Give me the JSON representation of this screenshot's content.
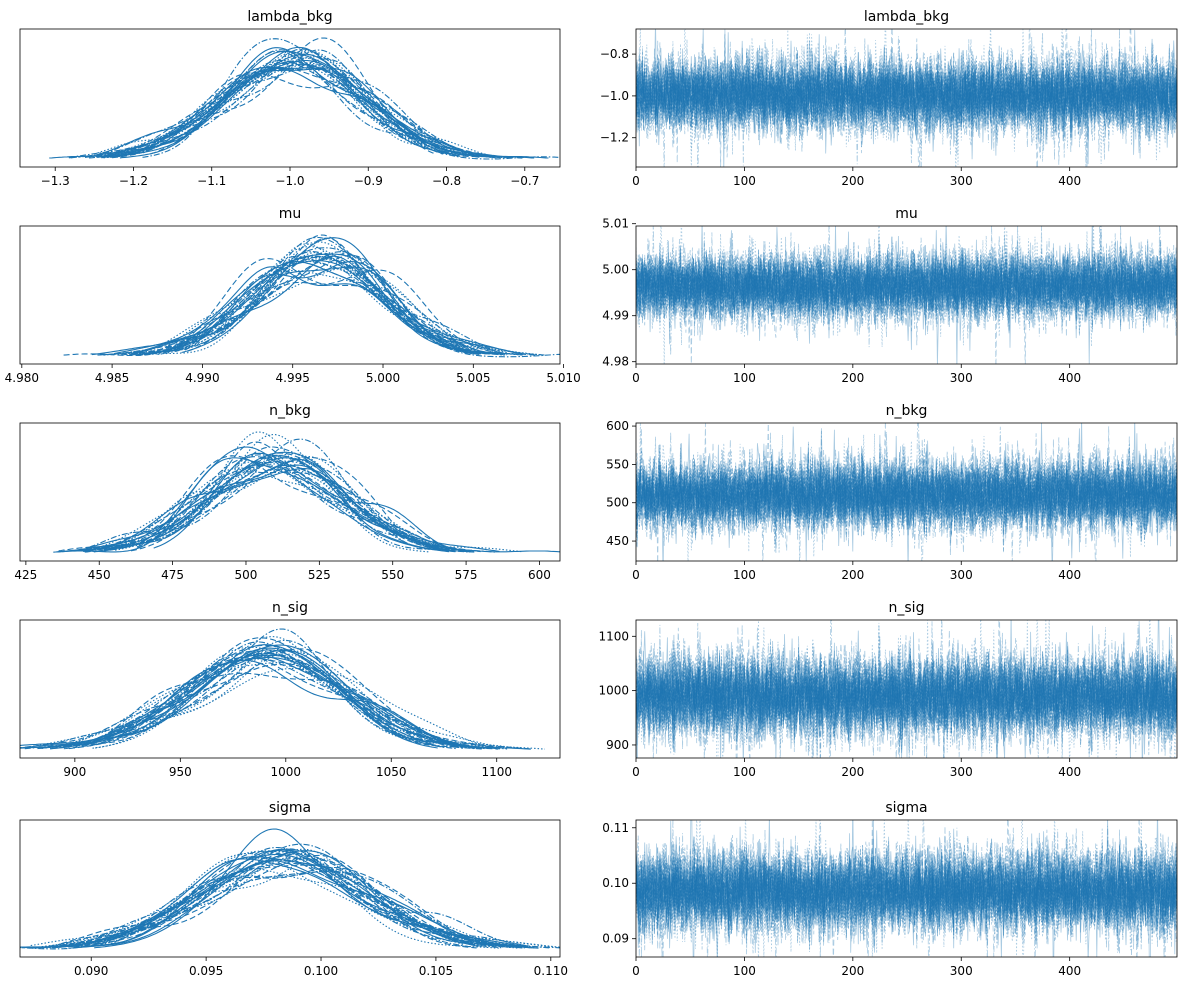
{
  "chart_data": [
    {
      "type": "density",
      "panel": "kde",
      "title": "lambda_bkg",
      "chains": 32,
      "mean": -0.995,
      "sd": 0.085,
      "xlim": [
        -1.345,
        -0.655
      ],
      "x_ticks": [
        {
          "v": -1.3,
          "label": "−1.3"
        },
        {
          "v": -1.2,
          "label": "−1.2"
        },
        {
          "v": -1.1,
          "label": "−1.1"
        },
        {
          "v": -1.0,
          "label": "−1.0"
        },
        {
          "v": -0.9,
          "label": "−0.9"
        },
        {
          "v": -0.8,
          "label": "−0.8"
        },
        {
          "v": -0.7,
          "label": "−0.7"
        }
      ],
      "y_ticks": [],
      "color": "#1f77b4"
    },
    {
      "type": "line",
      "panel": "trace",
      "title": "lambda_bkg",
      "chains": 32,
      "draws": 500,
      "mean": -0.995,
      "sd": 0.085,
      "xlim": [
        0,
        499
      ],
      "ylim": [
        -1.34,
        -0.68
      ],
      "x_ticks": [
        {
          "v": 0,
          "label": "0"
        },
        {
          "v": 100,
          "label": "100"
        },
        {
          "v": 200,
          "label": "200"
        },
        {
          "v": 300,
          "label": "300"
        },
        {
          "v": 400,
          "label": "400"
        }
      ],
      "y_ticks": [
        {
          "v": -1.2,
          "label": "−1.2"
        },
        {
          "v": -1.0,
          "label": "−1.0"
        },
        {
          "v": -0.8,
          "label": "−0.8"
        }
      ],
      "color": "#1f77b4"
    },
    {
      "type": "density",
      "panel": "kde",
      "title": "mu",
      "chains": 32,
      "mean": 4.9965,
      "sd": 0.0035,
      "xlim": [
        4.9799,
        5.0098
      ],
      "x_ticks": [
        {
          "v": 4.98,
          "label": "4.980"
        },
        {
          "v": 4.985,
          "label": "4.985"
        },
        {
          "v": 4.99,
          "label": "4.990"
        },
        {
          "v": 4.995,
          "label": "4.995"
        },
        {
          "v": 5.0,
          "label": "5.000"
        },
        {
          "v": 5.005,
          "label": "5.005"
        },
        {
          "v": 5.01,
          "label": "5.010"
        }
      ],
      "y_ticks": [],
      "color": "#1f77b4"
    },
    {
      "type": "line",
      "panel": "trace",
      "title": "mu",
      "chains": 32,
      "draws": 500,
      "mean": 4.9965,
      "sd": 0.0035,
      "xlim": [
        0,
        499
      ],
      "ylim": [
        4.9795,
        5.0095
      ],
      "x_ticks": [
        {
          "v": 0,
          "label": "0"
        },
        {
          "v": 100,
          "label": "100"
        },
        {
          "v": 200,
          "label": "200"
        },
        {
          "v": 300,
          "label": "300"
        },
        {
          "v": 400,
          "label": "400"
        }
      ],
      "y_ticks": [
        {
          "v": 4.98,
          "label": "4.98"
        },
        {
          "v": 4.99,
          "label": "4.99"
        },
        {
          "v": 5.0,
          "label": "5.00"
        },
        {
          "v": 5.01,
          "label": "5.01"
        }
      ],
      "color": "#1f77b4"
    },
    {
      "type": "density",
      "panel": "kde",
      "title": "n_bkg",
      "chains": 32,
      "mean": 510,
      "sd": 22,
      "xlim": [
        423,
        607
      ],
      "x_ticks": [
        {
          "v": 425,
          "label": "425"
        },
        {
          "v": 450,
          "label": "450"
        },
        {
          "v": 475,
          "label": "475"
        },
        {
          "v": 500,
          "label": "500"
        },
        {
          "v": 525,
          "label": "525"
        },
        {
          "v": 550,
          "label": "550"
        },
        {
          "v": 575,
          "label": "575"
        },
        {
          "v": 600,
          "label": "600"
        }
      ],
      "y_ticks": [],
      "color": "#1f77b4"
    },
    {
      "type": "line",
      "panel": "trace",
      "title": "n_bkg",
      "chains": 32,
      "draws": 500,
      "mean": 510,
      "sd": 22,
      "xlim": [
        0,
        499
      ],
      "ylim": [
        424,
        604
      ],
      "x_ticks": [
        {
          "v": 0,
          "label": "0"
        },
        {
          "v": 100,
          "label": "100"
        },
        {
          "v": 200,
          "label": "200"
        },
        {
          "v": 300,
          "label": "300"
        },
        {
          "v": 400,
          "label": "400"
        }
      ],
      "y_ticks": [
        {
          "v": 450,
          "label": "450"
        },
        {
          "v": 500,
          "label": "500"
        },
        {
          "v": 550,
          "label": "550"
        },
        {
          "v": 600,
          "label": "600"
        }
      ],
      "color": "#1f77b4"
    },
    {
      "type": "density",
      "panel": "kde",
      "title": "n_sig",
      "chains": 32,
      "mean": 990,
      "sd": 36,
      "xlim": [
        874,
        1130
      ],
      "x_ticks": [
        {
          "v": 900,
          "label": "900"
        },
        {
          "v": 950,
          "label": "950"
        },
        {
          "v": 1000,
          "label": "1000"
        },
        {
          "v": 1050,
          "label": "1050"
        },
        {
          "v": 1100,
          "label": "1100"
        }
      ],
      "y_ticks": [],
      "color": "#1f77b4"
    },
    {
      "type": "line",
      "panel": "trace",
      "title": "n_sig",
      "chains": 32,
      "draws": 500,
      "mean": 990,
      "sd": 36,
      "xlim": [
        0,
        499
      ],
      "ylim": [
        876,
        1130
      ],
      "x_ticks": [
        {
          "v": 0,
          "label": "0"
        },
        {
          "v": 100,
          "label": "100"
        },
        {
          "v": 200,
          "label": "200"
        },
        {
          "v": 300,
          "label": "300"
        },
        {
          "v": 400,
          "label": "400"
        }
      ],
      "y_ticks": [
        {
          "v": 900,
          "label": "900"
        },
        {
          "v": 1000,
          "label": "1000"
        },
        {
          "v": 1100,
          "label": "1100"
        }
      ],
      "color": "#1f77b4"
    },
    {
      "type": "density",
      "panel": "kde",
      "title": "sigma",
      "chains": 32,
      "mean": 0.0985,
      "sd": 0.0035,
      "xlim": [
        0.0869,
        0.1104
      ],
      "x_ticks": [
        {
          "v": 0.09,
          "label": "0.090"
        },
        {
          "v": 0.095,
          "label": "0.095"
        },
        {
          "v": 0.1,
          "label": "0.100"
        },
        {
          "v": 0.105,
          "label": "0.105"
        },
        {
          "v": 0.11,
          "label": "0.110"
        }
      ],
      "y_ticks": [],
      "color": "#1f77b4"
    },
    {
      "type": "line",
      "panel": "trace",
      "title": "sigma",
      "chains": 32,
      "draws": 500,
      "mean": 0.0985,
      "sd": 0.0035,
      "xlim": [
        0,
        499
      ],
      "ylim": [
        0.0867,
        0.1114
      ],
      "x_ticks": [
        {
          "v": 0,
          "label": "0"
        },
        {
          "v": 100,
          "label": "100"
        },
        {
          "v": 200,
          "label": "200"
        },
        {
          "v": 300,
          "label": "300"
        },
        {
          "v": 400,
          "label": "400"
        }
      ],
      "y_ticks": [
        {
          "v": 0.09,
          "label": "0.09"
        },
        {
          "v": 0.1,
          "label": "0.10"
        },
        {
          "v": 0.11,
          "label": "0.11"
        }
      ],
      "color": "#1f77b4"
    }
  ]
}
